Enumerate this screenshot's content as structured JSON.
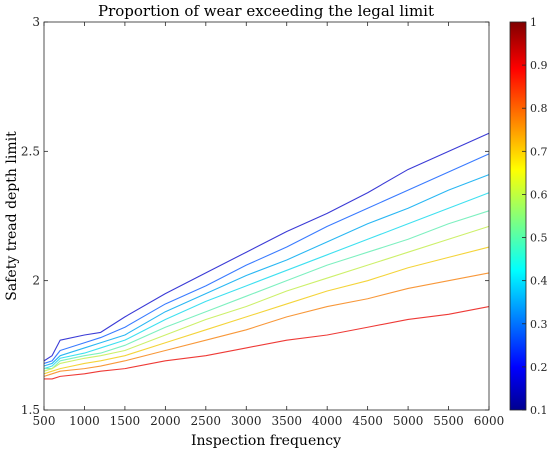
{
  "chart_data": {
    "type": "line",
    "title": "Proportion of wear exceeding the legal limit",
    "xlabel": "Inspection frequency",
    "ylabel": "Safety tread depth limit",
    "xlim": [
      500,
      6000
    ],
    "ylim": [
      1.5,
      3
    ],
    "xticks": [
      "500",
      "1000",
      "1500",
      "2000",
      "2500",
      "3000",
      "3500",
      "4000",
      "4500",
      "5000",
      "5500",
      "6000"
    ],
    "yticks": [
      "1.5",
      "2",
      "2.5",
      "3"
    ],
    "grid": false,
    "colormap": "jet",
    "colorbar": {
      "min": 0.1,
      "max": 1,
      "ticks": [
        "0.1",
        "0.2",
        "0.3",
        "0.4",
        "0.5",
        "0.6",
        "0.7",
        "0.8",
        "0.9",
        "1"
      ]
    },
    "x": [
      500,
      600,
      700,
      1000,
      1200,
      1500,
      2000,
      2500,
      3000,
      3500,
      4000,
      4500,
      5000,
      5500,
      6000
    ],
    "series": [
      {
        "level": 0.1,
        "color": "#3b3bd6",
        "values": [
          1.69,
          1.71,
          1.77,
          1.79,
          1.8,
          1.86,
          1.95,
          2.03,
          2.11,
          2.19,
          2.26,
          2.34,
          2.43,
          2.5,
          2.57
        ]
      },
      {
        "level": 0.2,
        "color": "#3a7bff",
        "values": [
          1.68,
          1.69,
          1.73,
          1.76,
          1.78,
          1.82,
          1.91,
          1.98,
          2.06,
          2.13,
          2.21,
          2.28,
          2.35,
          2.42,
          2.49
        ]
      },
      {
        "level": 0.3,
        "color": "#2ab7f3",
        "values": [
          1.67,
          1.68,
          1.71,
          1.74,
          1.76,
          1.79,
          1.88,
          1.95,
          2.02,
          2.08,
          2.15,
          2.22,
          2.28,
          2.35,
          2.41
        ]
      },
      {
        "level": 0.4,
        "color": "#3fe0f0",
        "values": [
          1.66,
          1.67,
          1.7,
          1.72,
          1.74,
          1.77,
          1.85,
          1.92,
          1.98,
          2.04,
          2.1,
          2.16,
          2.22,
          2.28,
          2.34
        ]
      },
      {
        "level": 0.5,
        "color": "#7ef0c0",
        "values": [
          1.66,
          1.66,
          1.69,
          1.71,
          1.72,
          1.75,
          1.82,
          1.88,
          1.94,
          2.0,
          2.06,
          2.11,
          2.16,
          2.22,
          2.27
        ]
      },
      {
        "level": 0.6,
        "color": "#cdf06a",
        "values": [
          1.65,
          1.66,
          1.68,
          1.7,
          1.71,
          1.73,
          1.79,
          1.85,
          1.9,
          1.96,
          2.01,
          2.06,
          2.11,
          2.16,
          2.21
        ]
      },
      {
        "level": 0.7,
        "color": "#f4d43a",
        "values": [
          1.64,
          1.65,
          1.66,
          1.68,
          1.69,
          1.71,
          1.76,
          1.81,
          1.86,
          1.91,
          1.96,
          2.0,
          2.05,
          2.09,
          2.13
        ]
      },
      {
        "level": 0.8,
        "color": "#f8983a",
        "values": [
          1.63,
          1.64,
          1.65,
          1.66,
          1.67,
          1.69,
          1.73,
          1.77,
          1.81,
          1.86,
          1.9,
          1.93,
          1.97,
          2.0,
          2.03
        ]
      },
      {
        "level": 0.9,
        "color": "#ee3a36",
        "values": [
          1.62,
          1.62,
          1.63,
          1.64,
          1.65,
          1.66,
          1.69,
          1.71,
          1.74,
          1.77,
          1.79,
          1.82,
          1.85,
          1.87,
          1.9
        ]
      }
    ]
  }
}
